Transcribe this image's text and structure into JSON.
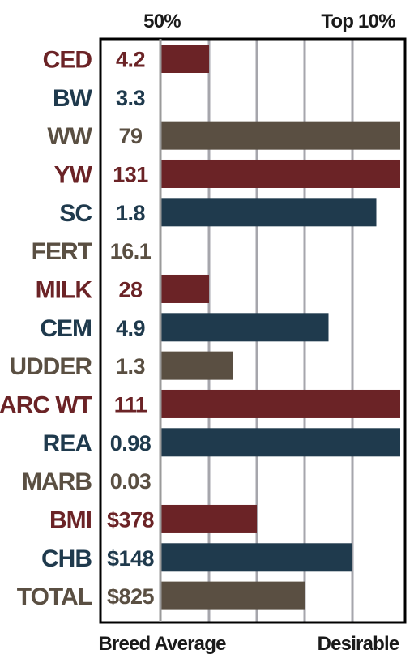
{
  "chart_data": {
    "type": "bar",
    "orientation": "horizontal",
    "top_labels": {
      "left": "50%",
      "right": "Top 10%"
    },
    "bottom_labels": {
      "left": "Breed Average",
      "right": "Desirable"
    },
    "colors": {
      "maroon": "#6b2326",
      "navy": "#1f3a4d",
      "taupe": "#5a4f42"
    },
    "xlim": [
      0,
      5
    ],
    "grid": true,
    "rows": [
      {
        "category": "CED",
        "value_label": "4.2",
        "bar": 1.0,
        "color": "maroon"
      },
      {
        "category": "BW",
        "value_label": "3.3",
        "bar": 0,
        "color": "navy"
      },
      {
        "category": "WW",
        "value_label": "79",
        "bar": 5.0,
        "color": "taupe"
      },
      {
        "category": "YW",
        "value_label": "131",
        "bar": 5.0,
        "color": "maroon"
      },
      {
        "category": "SC",
        "value_label": "1.8",
        "bar": 4.5,
        "color": "navy"
      },
      {
        "category": "FERT",
        "value_label": "16.1",
        "bar": 0,
        "color": "taupe"
      },
      {
        "category": "MILK",
        "value_label": "28",
        "bar": 1.0,
        "color": "maroon"
      },
      {
        "category": "CEM",
        "value_label": "4.9",
        "bar": 3.5,
        "color": "navy"
      },
      {
        "category": "UDDER",
        "value_label": "1.3",
        "bar": 1.5,
        "color": "taupe"
      },
      {
        "category": "CARC WT",
        "value_label": "111",
        "bar": 5.0,
        "color": "maroon"
      },
      {
        "category": "REA",
        "value_label": "0.98",
        "bar": 5.0,
        "color": "navy"
      },
      {
        "category": "MARB",
        "value_label": "0.03",
        "bar": 0,
        "color": "taupe"
      },
      {
        "category": "BMI",
        "value_label": "$378",
        "bar": 2.0,
        "color": "maroon"
      },
      {
        "category": "CHB",
        "value_label": "$148",
        "bar": 4.0,
        "color": "navy"
      },
      {
        "category": "TOTAL",
        "value_label": "$825",
        "bar": 3.0,
        "color": "taupe"
      }
    ]
  }
}
